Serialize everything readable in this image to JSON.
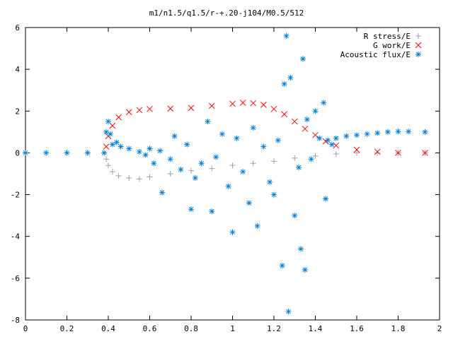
{
  "chart_data": {
    "type": "scatter",
    "title": "m1/n1.5/q1.5/r-+.20-j104/M0.5/512",
    "xlabel": "",
    "ylabel": "",
    "xlim": [
      0,
      2
    ],
    "ylim": [
      -8,
      6
    ],
    "x_ticks": [
      "0",
      "0.2",
      "0.4",
      "0.6",
      "0.8",
      "1",
      "1.2",
      "1.4",
      "1.6",
      "1.8",
      "2"
    ],
    "y_ticks": [
      "6",
      "4",
      "2",
      "0",
      "-2",
      "-4",
      "-6",
      "-8"
    ],
    "grid": false,
    "legend_position": "top-right",
    "series": [
      {
        "name": "R stress/E",
        "marker": "plus",
        "color": "#a0a0a0",
        "points": [
          [
            0.0,
            0.0
          ],
          [
            0.1,
            0.0
          ],
          [
            0.2,
            0.0
          ],
          [
            0.3,
            0.0
          ],
          [
            0.38,
            0.0
          ],
          [
            0.39,
            -0.3
          ],
          [
            0.4,
            -0.6
          ],
          [
            0.42,
            -0.9
          ],
          [
            0.45,
            -1.1
          ],
          [
            0.5,
            -1.2
          ],
          [
            0.55,
            -1.25
          ],
          [
            0.6,
            -1.15
          ],
          [
            0.7,
            -1.0
          ],
          [
            0.8,
            -0.85
          ],
          [
            0.9,
            -0.75
          ],
          [
            1.0,
            -0.6
          ],
          [
            1.1,
            -0.5
          ],
          [
            1.2,
            -0.4
          ],
          [
            1.3,
            -0.25
          ],
          [
            1.4,
            -0.15
          ],
          [
            1.5,
            -0.05
          ],
          [
            1.6,
            0.0
          ],
          [
            1.7,
            0.0
          ],
          [
            1.8,
            0.0
          ],
          [
            1.93,
            0.0
          ]
        ]
      },
      {
        "name": "G work/E",
        "marker": "cross",
        "color": "#ff0000",
        "points": [
          [
            0.39,
            0.3
          ],
          [
            0.4,
            0.8
          ],
          [
            0.42,
            1.3
          ],
          [
            0.45,
            1.7
          ],
          [
            0.5,
            1.95
          ],
          [
            0.55,
            2.05
          ],
          [
            0.6,
            2.1
          ],
          [
            0.7,
            2.12
          ],
          [
            0.8,
            2.15
          ],
          [
            0.9,
            2.25
          ],
          [
            1.0,
            2.35
          ],
          [
            1.05,
            2.4
          ],
          [
            1.1,
            2.38
          ],
          [
            1.15,
            2.3
          ],
          [
            1.2,
            2.1
          ],
          [
            1.25,
            1.85
          ],
          [
            1.3,
            1.5
          ],
          [
            1.35,
            1.15
          ],
          [
            1.4,
            0.85
          ],
          [
            1.45,
            0.55
          ],
          [
            1.5,
            0.35
          ],
          [
            1.6,
            0.15
          ],
          [
            1.7,
            0.05
          ],
          [
            1.8,
            0.0
          ],
          [
            1.93,
            0.0
          ]
        ]
      },
      {
        "name": "Acoustic flux/E",
        "marker": "star",
        "color": "#0080e0",
        "points": [
          [
            0.0,
            0.0
          ],
          [
            0.1,
            0.0
          ],
          [
            0.2,
            0.0
          ],
          [
            0.3,
            0.0
          ],
          [
            0.38,
            0.0
          ],
          [
            0.39,
            1.0
          ],
          [
            0.4,
            1.5
          ],
          [
            0.41,
            0.9
          ],
          [
            0.42,
            0.4
          ],
          [
            0.44,
            0.5
          ],
          [
            0.46,
            0.3
          ],
          [
            0.5,
            0.2
          ],
          [
            0.55,
            0.05
          ],
          [
            0.58,
            -0.1
          ],
          [
            0.6,
            0.2
          ],
          [
            0.62,
            -0.5
          ],
          [
            0.65,
            0.1
          ],
          [
            0.66,
            -1.9
          ],
          [
            0.7,
            -0.3
          ],
          [
            0.72,
            0.8
          ],
          [
            0.75,
            -0.8
          ],
          [
            0.78,
            0.4
          ],
          [
            0.8,
            -2.7
          ],
          [
            0.82,
            -1.2
          ],
          [
            0.85,
            -0.5
          ],
          [
            0.88,
            1.5
          ],
          [
            0.9,
            -2.8
          ],
          [
            0.92,
            -0.2
          ],
          [
            0.95,
            0.9
          ],
          [
            0.98,
            -1.6
          ],
          [
            1.0,
            -3.8
          ],
          [
            1.02,
            0.7
          ],
          [
            1.05,
            -0.9
          ],
          [
            1.08,
            -2.4
          ],
          [
            1.1,
            1.2
          ],
          [
            1.12,
            -3.5
          ],
          [
            1.15,
            0.3
          ],
          [
            1.18,
            -1.4
          ],
          [
            1.2,
            -2.0
          ],
          [
            1.22,
            0.6
          ],
          [
            1.24,
            -5.4
          ],
          [
            1.25,
            3.3
          ],
          [
            1.26,
            5.6
          ],
          [
            1.27,
            -7.6
          ],
          [
            1.28,
            3.6
          ],
          [
            1.3,
            -3.0
          ],
          [
            1.32,
            -0.7
          ],
          [
            1.33,
            -4.6
          ],
          [
            1.34,
            4.5
          ],
          [
            1.35,
            -5.6
          ],
          [
            1.36,
            1.6
          ],
          [
            1.38,
            -0.3
          ],
          [
            1.4,
            2.0
          ],
          [
            1.42,
            0.7
          ],
          [
            1.44,
            2.4
          ],
          [
            1.45,
            -2.2
          ],
          [
            1.46,
            0.6
          ],
          [
            1.48,
            0.4
          ],
          [
            1.5,
            0.7
          ],
          [
            1.55,
            0.8
          ],
          [
            1.6,
            0.85
          ],
          [
            1.65,
            0.9
          ],
          [
            1.7,
            0.95
          ],
          [
            1.75,
            1.0
          ],
          [
            1.8,
            1.02
          ],
          [
            1.85,
            1.02
          ],
          [
            1.93,
            1.0
          ]
        ]
      }
    ]
  }
}
